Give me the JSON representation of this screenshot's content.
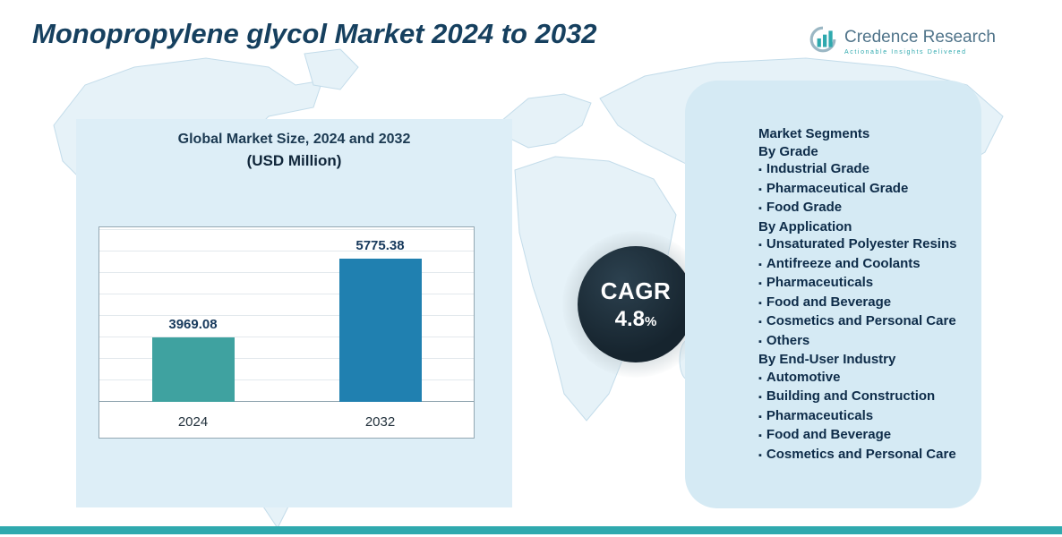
{
  "page": {
    "title": "Monopropylene glycol Market 2024 to 2032"
  },
  "logo": {
    "name": "Credence Research",
    "tagline": "Actionable Insights Delivered"
  },
  "chart_panel": {
    "title_line1": "Global Market Size, 2024 and 2032",
    "title_line2": "(USD Million)"
  },
  "chart_data": {
    "type": "bar",
    "title": "Global Market Size, 2024 and 2032 (USD Million)",
    "categories": [
      "2024",
      "2032"
    ],
    "values": [
      3969.08,
      5775.38
    ],
    "value_labels": [
      "3969.08",
      "5775.38"
    ],
    "bar_colors": [
      "#3fa2a0",
      "#2080b0"
    ],
    "ylim": [
      2500,
      6500
    ],
    "grid": true,
    "xlabel": "",
    "ylabel": ""
  },
  "cagr": {
    "label": "CAGR",
    "value": "4.8",
    "suffix": "%"
  },
  "segments": {
    "heading": "Market Segments",
    "groups": [
      {
        "title": "By Grade",
        "items": [
          "Industrial Grade",
          "Pharmaceutical Grade",
          "Food Grade"
        ]
      },
      {
        "title": "By Application",
        "items": [
          "Unsaturated Polyester Resins",
          "Antifreeze and Coolants",
          "Pharmaceuticals",
          "Food and Beverage",
          "Cosmetics and Personal Care",
          "Others"
        ]
      },
      {
        "title": "By End-User Industry",
        "items": [
          "Automotive",
          "Building and Construction",
          "Pharmaceuticals",
          "Food and Beverage",
          "Cosmetics and Personal Care"
        ]
      }
    ]
  },
  "colors": {
    "accent_teal": "#2fa9ae",
    "dark_navy": "#0e2c49",
    "panel_blue_left": "#ddeef7",
    "panel_blue_right": "#d5eaf4",
    "bar_2024": "#3fa2a0",
    "bar_2032": "#2080b0",
    "cagr_circle": "#16242e"
  }
}
